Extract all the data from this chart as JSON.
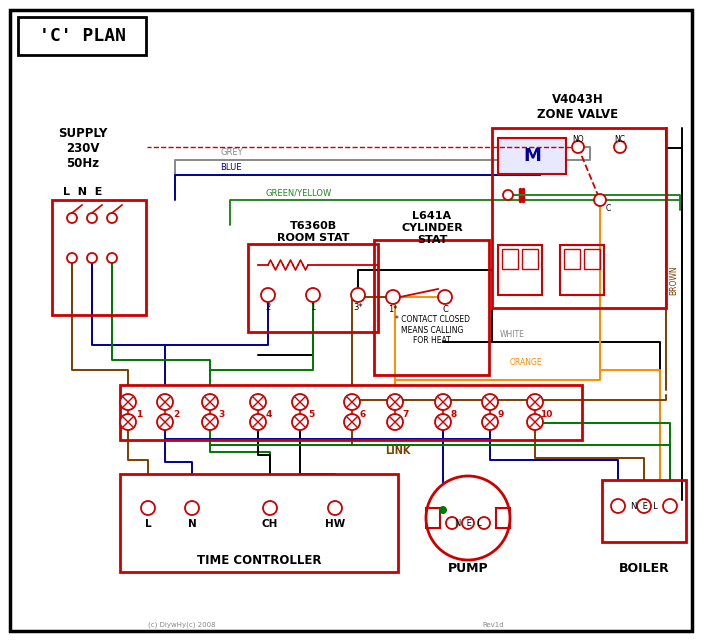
{
  "title": "'C' PLAN",
  "red": "#cc0000",
  "blue": "#000099",
  "green": "#007700",
  "grey": "#888888",
  "brown": "#7B3F00",
  "orange": "#FF8C00",
  "black": "#000000",
  "gy": "#228822",
  "supply_text": "SUPPLY\n230V\n50Hz",
  "zone_valve_title": "V4043H\nZONE VALVE",
  "room_stat_title": "T6360B\nROOM STAT",
  "cyl_stat_title": "L641A\nCYLINDER\nSTAT",
  "time_ctrl_label": "TIME CONTROLLER",
  "pump_label": "PUMP",
  "boiler_label": "BOILER",
  "link_label": "LINK",
  "terminal_labels": [
    "1",
    "2",
    "3",
    "4",
    "5",
    "6",
    "7",
    "8",
    "9",
    "10"
  ],
  "note_text": "* CONTACT CLOSED\nMEANS CALLING\nFOR HEAT",
  "copyright_text": "(c) DiywHy(c) 2008",
  "rev_text": "Rev1d"
}
